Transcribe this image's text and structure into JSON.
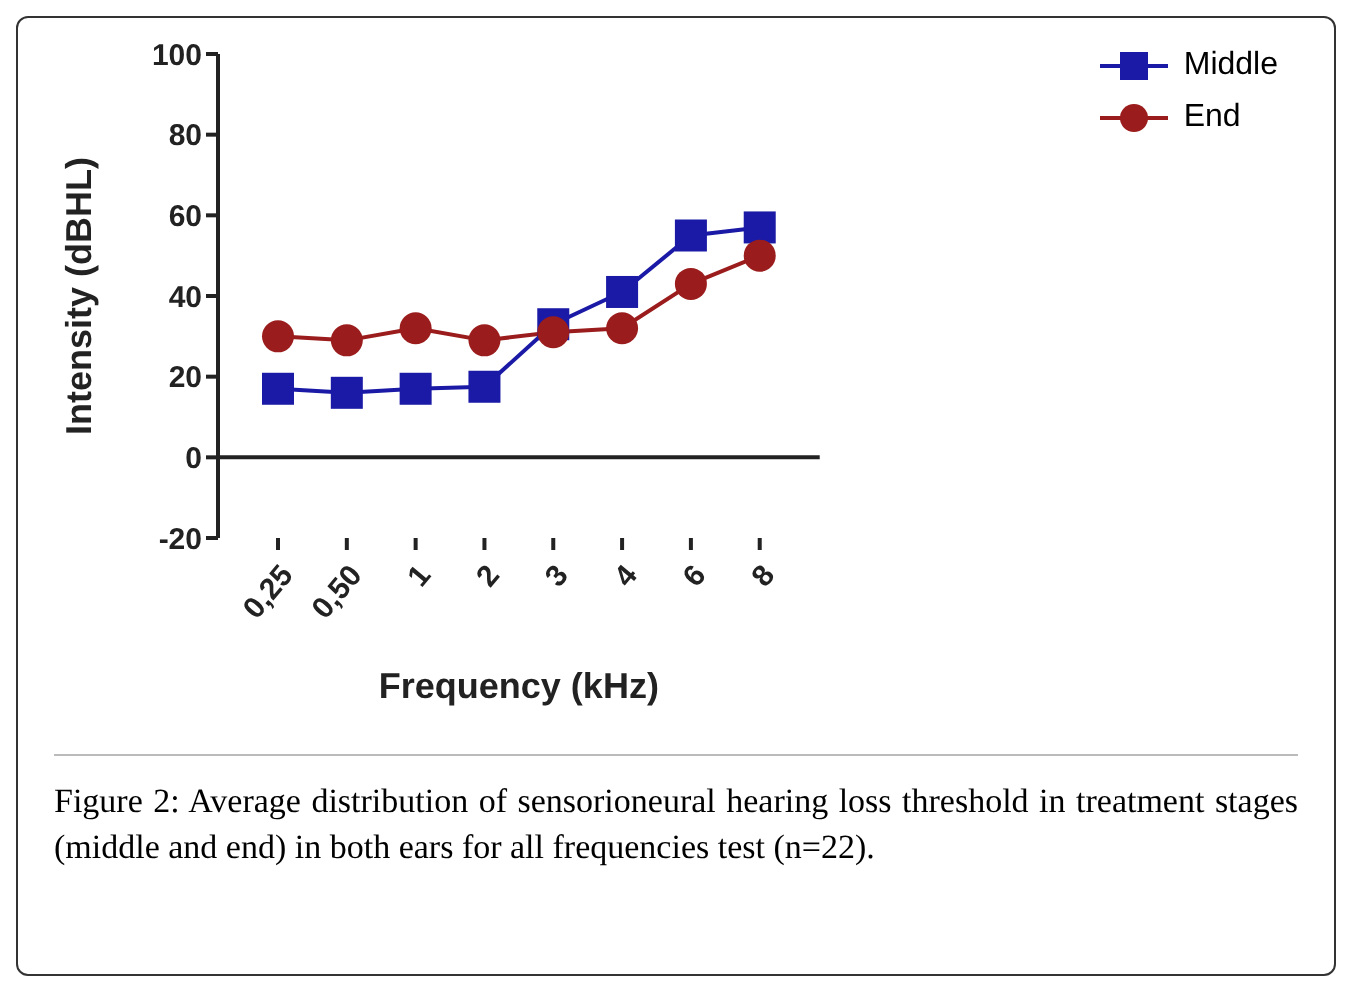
{
  "chart_data": {
    "type": "line",
    "xlabel": "Frequency (kHz)",
    "ylabel": "Intensity (dBHL)",
    "categories": [
      "0,25",
      "0,50",
      "1",
      "2",
      "3",
      "4",
      "6",
      "8"
    ],
    "series": [
      {
        "name": "Middle",
        "color": "#1a1aa6",
        "marker": "square",
        "values": [
          17,
          16,
          17,
          17.5,
          33,
          41,
          55,
          57
        ]
      },
      {
        "name": "End",
        "color": "#9b1c1c",
        "marker": "circle",
        "values": [
          30,
          29,
          32,
          29,
          31,
          32,
          43,
          50
        ]
      }
    ],
    "ref_lines": [
      {
        "axis": "y",
        "value": 0
      }
    ],
    "ylim": [
      -20,
      100
    ],
    "yticks": [
      -20,
      0,
      20,
      40,
      60,
      80,
      100
    ],
    "grid": false,
    "legend": "top right",
    "annotations": [
      "Figure 2: Average distribution of sensorioneural hearing loss threshold in treatment stages (middle and end) in both ears for all frequencies test (n=22)."
    ]
  }
}
